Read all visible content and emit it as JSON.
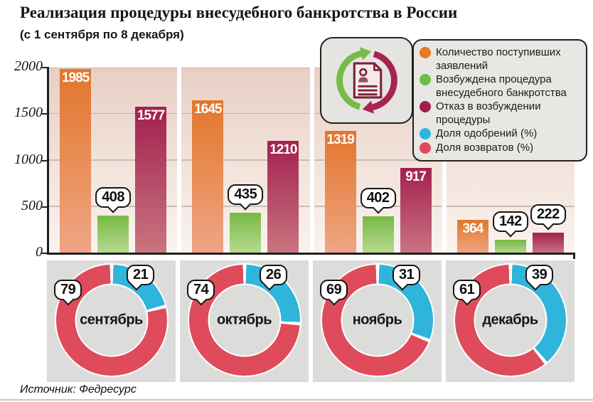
{
  "header": {
    "title": "Реализация процедуры внесудебного банкротства в России",
    "subtitle": "(с 1 сентября по 8 декабря)"
  },
  "legend": {
    "items": [
      {
        "label": "Количество поступивших заявлений",
        "color": "#e8791f"
      },
      {
        "label": "Возбуждена процедура внесудебного банкротства",
        "color": "#6fbe44"
      },
      {
        "label": "Отказ в возбуждении процедуры",
        "color": "#a31d51"
      },
      {
        "label": "Доля одобрений (%)",
        "color": "#2fb5df"
      },
      {
        "label": "Доля возвратов (%)",
        "color": "#e04a5a"
      }
    ]
  },
  "icon": {
    "name": "document-cycle-icon",
    "arrow_up_color": "#76bc45",
    "arrow_down_color": "#a82350",
    "document_stroke_color": "#7e2040",
    "document_fill_color": "#f4ece4",
    "person_fill_color": "#94535b"
  },
  "chart_data": [
    {
      "type": "bar",
      "title": "Реализация процедуры внесудебного банкротства в России",
      "subtitle": "(с 1 сентября по 8 декабря)",
      "categories": [
        "сентябрь",
        "октябрь",
        "ноябрь",
        "декабрь"
      ],
      "series": [
        {
          "name": "Количество поступивших заявлений",
          "values": [
            1985,
            1645,
            1319,
            364
          ],
          "color_top": "#e2762b",
          "color_bottom": "#efa585",
          "label_modes": [
            "inside",
            "inside",
            "inside",
            "inside"
          ]
        },
        {
          "name": "Возбуждена процедура внесудебного банкротства",
          "values": [
            408,
            435,
            402,
            142
          ],
          "color_top": "#77b945",
          "color_bottom": "#b8da90",
          "label_modes": [
            "bubble",
            "bubble",
            "bubble",
            "bubble"
          ]
        },
        {
          "name": "Отказ в возбуждении процедуры",
          "values": [
            1577,
            1210,
            917,
            222
          ],
          "color_top": "#a32050",
          "color_bottom": "#c97580",
          "label_modes": [
            "inside",
            "inside",
            "inside",
            "bubble"
          ]
        }
      ],
      "ylim": [
        0,
        2000
      ],
      "yticks": [
        0,
        500,
        1000,
        1500,
        2000
      ],
      "grid": true,
      "legend_position": "top-right"
    },
    {
      "type": "pie",
      "variant": "donut",
      "categories": [
        "сентябрь",
        "октябрь",
        "ноябрь",
        "декабрь"
      ],
      "series": [
        {
          "name": "Доля возвратов (%)",
          "color": "#e04b5b",
          "values": [
            79,
            74,
            69,
            61
          ]
        },
        {
          "name": "Доля одобрений (%)",
          "color": "#2fb4dc",
          "values": [
            21,
            26,
            31,
            39
          ]
        }
      ],
      "start_angle": "top",
      "direction": "clockwise"
    }
  ],
  "footer": {
    "source": "Источник: Федресурс"
  }
}
